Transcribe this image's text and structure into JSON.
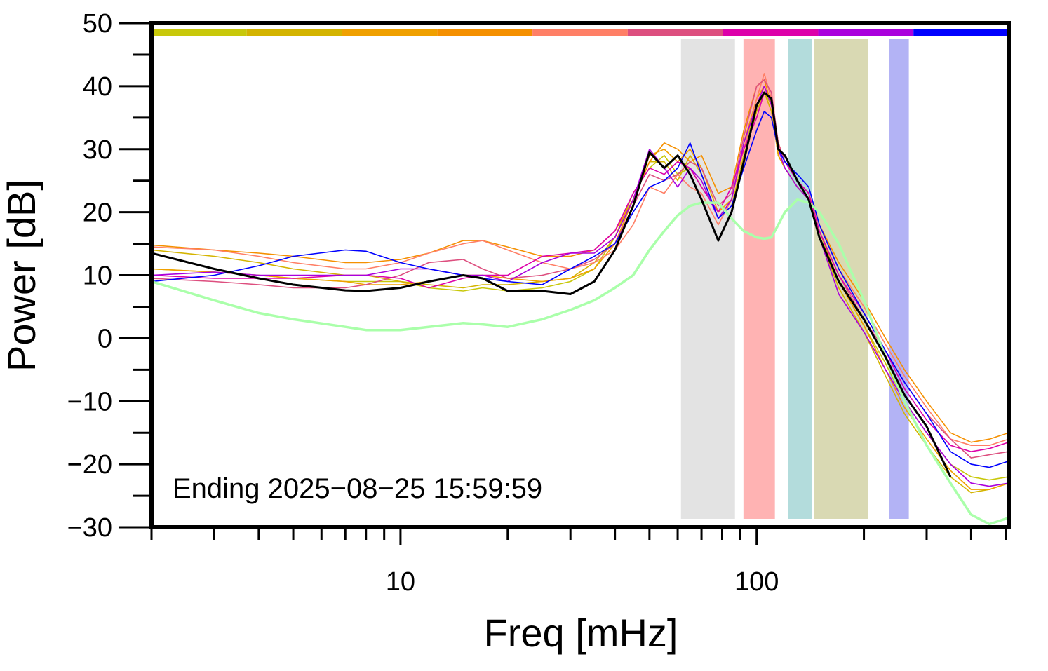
{
  "chart_data": {
    "type": "line",
    "x_scale": "log",
    "xlabel": "Freq [mHz]",
    "ylabel": "Power [dB]",
    "annotation": "Ending 2025−08−25 15:59:59",
    "xlim": [
      2,
      510
    ],
    "ylim": [
      -30,
      50
    ],
    "xticks": [
      10,
      100
    ],
    "xminor_ticks": [
      2,
      3,
      4,
      5,
      6,
      7,
      8,
      9,
      20,
      30,
      40,
      50,
      60,
      70,
      80,
      90,
      200,
      300,
      400,
      500
    ],
    "yticks": [
      {
        "value": -30,
        "label": "−30"
      },
      {
        "value": -20,
        "label": "−20"
      },
      {
        "value": -10,
        "label": "−10"
      },
      0,
      10,
      20,
      30,
      40,
      50
    ],
    "yminor_ticks": [
      -25,
      -15,
      -5,
      5,
      15,
      25,
      35,
      45
    ],
    "colorbar": [
      "#c8c80a",
      "#d4b400",
      "#f0a000",
      "#f59000",
      "#ff7f66",
      "#dd4f7f",
      "#dd00aa",
      "#aa00dd",
      "#0000ff"
    ],
    "bands": [
      {
        "x0": 61.3,
        "x1": 86.9,
        "color": "#e3e3e3"
      },
      {
        "x0": 91.8,
        "x1": 112.5,
        "color": "#ffb3b3"
      },
      {
        "x0": 122.6,
        "x1": 143,
        "color": "#b3dcdc"
      },
      {
        "x0": 145,
        "x1": 205.6,
        "color": "#d9d9b3"
      },
      {
        "x0": 235.5,
        "x1": 267.4,
        "color": "#b3b3f5"
      }
    ],
    "x": [
      2,
      3,
      4,
      5,
      7,
      8,
      10,
      12,
      15,
      17,
      20,
      25,
      30,
      35,
      40,
      45,
      50,
      55,
      60,
      65,
      70,
      78,
      85,
      92,
      100,
      105,
      110,
      115,
      120,
      130,
      140,
      150,
      170,
      200,
      230,
      260,
      300,
      350,
      400,
      450,
      510
    ],
    "series": [
      {
        "color": "#c8c80a",
        "linewidth": 1.6,
        "values": [
          11,
          10.5,
          10,
          9.5,
          9,
          9,
          9,
          8,
          7.5,
          8,
          7.5,
          8,
          9,
          11,
          16,
          23,
          27,
          29,
          26,
          27,
          24,
          20,
          22,
          30,
          37,
          39,
          37,
          29,
          27,
          24,
          22,
          16,
          9,
          2,
          -4,
          -10,
          -15,
          -20,
          -22,
          -22.5,
          -22
        ]
      },
      {
        "color": "#d4b400",
        "linewidth": 1.6,
        "values": [
          14,
          13,
          12,
          11,
          10,
          10,
          9,
          8.5,
          8,
          8.5,
          8.5,
          9,
          9.5,
          12,
          16,
          22,
          28,
          28,
          25,
          29,
          26,
          19,
          21,
          29,
          36,
          39,
          36,
          29,
          27,
          24,
          22,
          16,
          8,
          1,
          -6,
          -12,
          -17,
          -22,
          -24.5,
          -24,
          -23
        ]
      },
      {
        "color": "#f0a000",
        "linewidth": 1.6,
        "values": [
          11,
          10.5,
          10,
          9.5,
          9,
          8.5,
          8.5,
          9,
          10,
          10,
          9.5,
          9,
          9.5,
          11,
          15,
          22,
          29,
          30,
          28,
          30,
          27,
          20,
          22,
          31,
          38,
          40,
          37,
          29,
          27,
          24,
          22,
          17,
          9,
          2,
          -5,
          -11,
          -16,
          -21,
          -24,
          -24,
          -23
        ]
      },
      {
        "color": "#f59000",
        "linewidth": 1.6,
        "values": [
          14.8,
          14,
          13.5,
          13,
          12,
          12,
          12.5,
          13.5,
          15.5,
          15.5,
          14.5,
          13,
          13,
          14,
          17,
          22,
          28,
          31,
          30,
          28,
          29,
          23,
          24,
          33,
          40,
          41,
          37,
          31,
          28,
          25,
          23,
          18,
          12,
          6,
          0,
          -5,
          -10,
          -15,
          -16.5,
          -16,
          -15
        ]
      },
      {
        "color": "#ff7f66",
        "linewidth": 1.6,
        "values": [
          14.5,
          14,
          13,
          12,
          11,
          11,
          12,
          13.5,
          15,
          15.5,
          14,
          12,
          11,
          12,
          14,
          18,
          24,
          23,
          26,
          24,
          23,
          18,
          22,
          30,
          38,
          42,
          38,
          31,
          28,
          25,
          23,
          18,
          11,
          5,
          -1,
          -6,
          -11,
          -16,
          -17,
          -17,
          -16
        ]
      },
      {
        "color": "#dd4f7f",
        "linewidth": 1.6,
        "values": [
          9.5,
          9,
          8.5,
          8,
          8,
          8.5,
          10,
          12,
          12.5,
          11,
          9.5,
          10,
          11,
          12.5,
          15,
          21,
          26,
          25,
          26,
          28,
          27,
          21,
          23,
          32,
          40,
          41,
          39,
          31,
          28,
          25,
          23,
          17,
          10,
          3,
          -2,
          -7,
          -12,
          -16,
          -19,
          -18.5,
          -18
        ]
      },
      {
        "color": "#dd00aa",
        "linewidth": 1.6,
        "values": [
          10,
          9.5,
          9.5,
          9.5,
          10,
          10,
          9.5,
          8,
          9.5,
          10,
          10,
          13,
          13.5,
          14,
          17,
          23,
          27,
          26,
          28,
          27,
          24,
          20,
          24,
          30,
          35,
          39,
          38,
          30,
          28,
          25,
          23,
          17,
          10,
          4,
          -2,
          -8,
          -13,
          -17,
          -18,
          -17.5,
          -16.5
        ]
      },
      {
        "color": "#aa00dd",
        "linewidth": 1.6,
        "values": [
          10,
          10.5,
          10,
          10,
          10,
          10,
          11,
          11,
          10,
          10,
          9,
          12,
          13.5,
          13.5,
          16,
          22,
          30,
          27,
          24,
          27,
          25,
          19,
          22,
          31,
          37,
          40,
          37,
          30,
          27,
          24,
          22,
          16,
          7,
          1,
          -5,
          -10,
          -15,
          -20,
          -23,
          -23.5,
          -23
        ]
      },
      {
        "color": "#0000ff",
        "linewidth": 1.6,
        "values": [
          9,
          10,
          11.5,
          13,
          14,
          13.8,
          12,
          11,
          10,
          9.5,
          9,
          8.5,
          11,
          13,
          15,
          20,
          24,
          25,
          27,
          31,
          26,
          19,
          21,
          27,
          33,
          36,
          35,
          30,
          28,
          26,
          24,
          18,
          11,
          4,
          -2,
          -7,
          -12,
          -18,
          -20,
          -20.5,
          -19.5
        ]
      },
      {
        "color": "#aaffaa",
        "linewidth": 3.5,
        "values": [
          9,
          6,
          4,
          3,
          1.8,
          1.3,
          1.3,
          1.8,
          2.4,
          2.2,
          1.8,
          3,
          4.5,
          6,
          8,
          10,
          14,
          17,
          19.5,
          21,
          21.5,
          21.5,
          19,
          17,
          16,
          15.8,
          16,
          18,
          20,
          22,
          21.5,
          20,
          15,
          6,
          -3,
          -10,
          -17,
          -23,
          -28,
          -29.5,
          -28.5
        ]
      },
      {
        "color": "#000000",
        "linewidth": 3,
        "values": [
          13.5,
          11,
          9.5,
          8.5,
          7.6,
          7.5,
          8,
          9,
          10,
          9.5,
          7.5,
          7.5,
          7,
          9,
          14,
          21,
          29.5,
          27,
          29,
          26,
          22,
          15.5,
          20,
          28,
          37,
          39,
          38,
          30,
          29,
          25,
          22,
          16,
          9,
          3,
          -3,
          -9,
          -14,
          -22,
          null,
          null,
          null
        ]
      }
    ]
  }
}
